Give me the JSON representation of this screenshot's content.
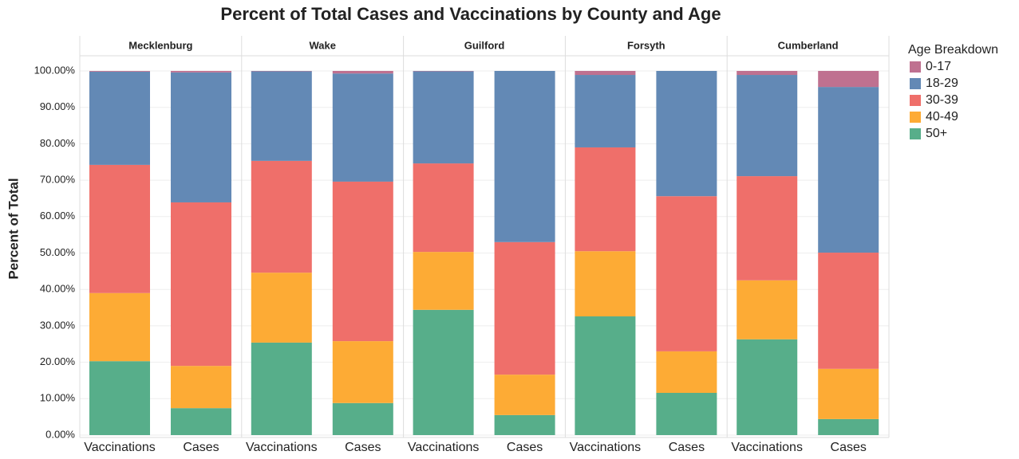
{
  "chart_data": {
    "type": "stacked-bar",
    "title": "Percent of Total Cases and Vaccinations by County and Age",
    "y_label": "Percent of Total",
    "legend_title": "Age Breakdown",
    "facets": [
      "Mecklenburg",
      "Wake",
      "Guilford",
      "Forsyth",
      "Cumberland"
    ],
    "categories": [
      "Vaccinations",
      "Cases"
    ],
    "ylim": [
      0,
      100
    ],
    "yticks": [
      {
        "value": 0,
        "label": "0.00%"
      },
      {
        "value": 10,
        "label": "10.00%"
      },
      {
        "value": 20,
        "label": "20.00%"
      },
      {
        "value": 30,
        "label": "30.00%"
      },
      {
        "value": 40,
        "label": "40.00%"
      },
      {
        "value": 50,
        "label": "50.00%"
      },
      {
        "value": 60,
        "label": "60.00%"
      },
      {
        "value": 70,
        "label": "70.00%"
      },
      {
        "value": 80,
        "label": "80.00%"
      },
      {
        "value": 90,
        "label": "90.00%"
      },
      {
        "value": 100,
        "label": "100.00%"
      }
    ],
    "grid": true,
    "series": [
      {
        "name": "0-17",
        "color": "#bf7190",
        "values": [
          [
            0.2,
            0.4
          ],
          [
            0.1,
            0.7
          ],
          [
            0.1,
            0
          ],
          [
            1.1,
            0
          ],
          [
            1.1,
            4.4
          ]
        ]
      },
      {
        "name": "18-29",
        "color": "#6389b5",
        "values": [
          [
            25.6,
            35.7
          ],
          [
            24.6,
            29.7
          ],
          [
            25.3,
            47.0
          ],
          [
            19.9,
            34.4
          ],
          [
            27.8,
            45.5
          ]
        ]
      },
      {
        "name": "30-39",
        "color": "#ef6f6a",
        "values": [
          [
            35.2,
            44.9
          ],
          [
            30.7,
            43.8
          ],
          [
            24.3,
            36.4
          ],
          [
            28.5,
            42.6
          ],
          [
            28.6,
            31.9
          ]
        ]
      },
      {
        "name": "40-49",
        "color": "#fdab35",
        "values": [
          [
            18.7,
            11.6
          ],
          [
            19.2,
            17.0
          ],
          [
            15.9,
            11.1
          ],
          [
            17.9,
            11.4
          ],
          [
            16.2,
            13.8
          ]
        ]
      },
      {
        "name": "50+",
        "color": "#57ae8a",
        "values": [
          [
            20.3,
            7.4
          ],
          [
            25.4,
            8.8
          ],
          [
            34.4,
            5.5
          ],
          [
            32.6,
            11.6
          ],
          [
            26.3,
            4.4
          ]
        ]
      }
    ]
  }
}
